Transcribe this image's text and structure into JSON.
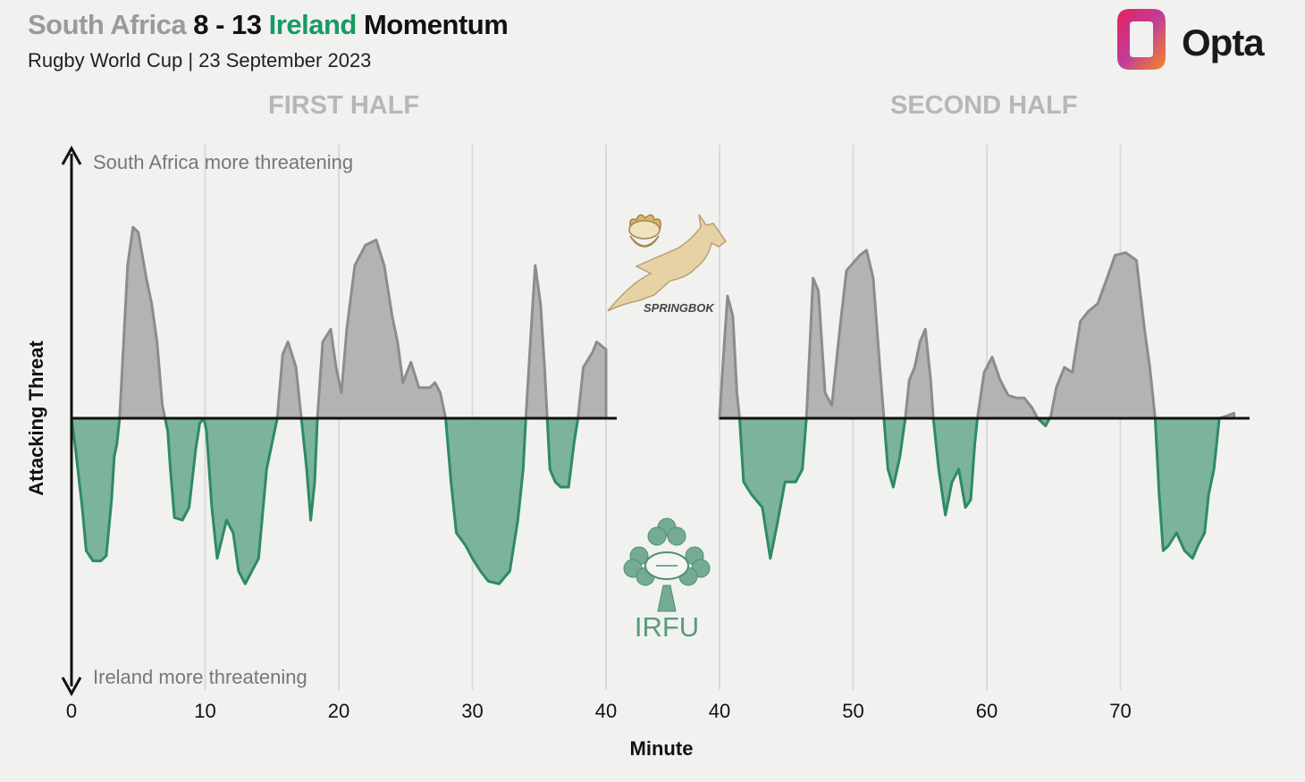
{
  "header": {
    "title_home": "South Africa",
    "title_score": "8 - 13",
    "title_away": "Ireland",
    "title_suffix": "Momentum",
    "subtitle": "Rugby World Cup | 23 September 2023",
    "first_half": "FIRST HALF",
    "second_half": "SECOND HALF"
  },
  "logo": {
    "text": "Opta",
    "icon": "opta-logo-icon"
  },
  "badges": {
    "home_text": "SPRINGBOK",
    "away_text": "IRFU"
  },
  "annotations": {
    "top": "South Africa more threatening",
    "bottom": "Ireland more threatening"
  },
  "colors": {
    "home": "#b3b3b3",
    "home_line": "#8c8c8c",
    "away": "#7bb39b",
    "away_line": "#2e8a64",
    "background": "#f1f1f0"
  },
  "chart_data": {
    "type": "area",
    "xlabel": "Minute",
    "ylabel": "Attacking Threat",
    "ylim": [
      -1,
      1
    ],
    "grid": "vertical",
    "halves": [
      {
        "name": "FIRST HALF",
        "xlim": [
          0,
          40
        ],
        "xticks": [
          0,
          10,
          20,
          30,
          40
        ]
      },
      {
        "name": "SECOND HALF",
        "xlim": [
          40,
          80
        ],
        "xticks": [
          40,
          50,
          60,
          70
        ]
      }
    ],
    "series": [
      {
        "name": "first_half",
        "points": [
          [
            0,
            0
          ],
          [
            0.3,
            -0.12
          ],
          [
            0.8,
            -0.35
          ],
          [
            1.1,
            -0.52
          ],
          [
            1.6,
            -0.56
          ],
          [
            2.2,
            -0.56
          ],
          [
            2.6,
            -0.54
          ],
          [
            3.0,
            -0.32
          ],
          [
            3.2,
            -0.15
          ],
          [
            3.4,
            -0.1
          ],
          [
            3.6,
            0
          ],
          [
            3.8,
            0.2
          ],
          [
            4.2,
            0.6
          ],
          [
            4.6,
            0.75
          ],
          [
            5.0,
            0.73
          ],
          [
            5.6,
            0.55
          ],
          [
            6.0,
            0.45
          ],
          [
            6.4,
            0.3
          ],
          [
            6.8,
            0.05
          ],
          [
            7.0,
            0
          ],
          [
            7.2,
            -0.05
          ],
          [
            7.4,
            -0.2
          ],
          [
            7.7,
            -0.39
          ],
          [
            8.3,
            -0.4
          ],
          [
            8.8,
            -0.35
          ],
          [
            9.3,
            -0.12
          ],
          [
            9.6,
            -0.02
          ],
          [
            9.9,
            0
          ],
          [
            10.1,
            -0.05
          ],
          [
            10.5,
            -0.35
          ],
          [
            10.9,
            -0.55
          ],
          [
            11.6,
            -0.4
          ],
          [
            12.1,
            -0.45
          ],
          [
            12.5,
            -0.6
          ],
          [
            13.0,
            -0.65
          ],
          [
            13.5,
            -0.6
          ],
          [
            14.0,
            -0.55
          ],
          [
            14.6,
            -0.2
          ],
          [
            15.0,
            -0.1
          ],
          [
            15.4,
            0
          ],
          [
            15.8,
            0.25
          ],
          [
            16.2,
            0.3
          ],
          [
            16.8,
            0.2
          ],
          [
            17.2,
            0
          ],
          [
            17.6,
            -0.2
          ],
          [
            17.9,
            -0.4
          ],
          [
            18.2,
            -0.25
          ],
          [
            18.4,
            0
          ],
          [
            18.8,
            0.3
          ],
          [
            19.4,
            0.35
          ],
          [
            19.8,
            0.2
          ],
          [
            20.2,
            0.1
          ],
          [
            20.6,
            0.35
          ],
          [
            21.2,
            0.6
          ],
          [
            22.0,
            0.68
          ],
          [
            22.8,
            0.7
          ],
          [
            23.4,
            0.6
          ],
          [
            24.0,
            0.4
          ],
          [
            24.4,
            0.3
          ],
          [
            24.8,
            0.14
          ],
          [
            25.4,
            0.22
          ],
          [
            26.0,
            0.12
          ],
          [
            26.8,
            0.12
          ],
          [
            27.2,
            0.14
          ],
          [
            27.6,
            0.1
          ],
          [
            28.0,
            0
          ],
          [
            28.4,
            -0.25
          ],
          [
            28.8,
            -0.45
          ],
          [
            29.5,
            -0.5
          ],
          [
            30.0,
            -0.55
          ],
          [
            30.6,
            -0.6
          ],
          [
            31.2,
            -0.64
          ],
          [
            32.0,
            -0.65
          ],
          [
            32.8,
            -0.6
          ],
          [
            33.4,
            -0.4
          ],
          [
            33.8,
            -0.2
          ],
          [
            34.0,
            0
          ],
          [
            34.4,
            0.35
          ],
          [
            34.7,
            0.6
          ],
          [
            35.1,
            0.45
          ],
          [
            35.4,
            0.2
          ],
          [
            35.6,
            0
          ],
          [
            35.8,
            -0.2
          ],
          [
            36.2,
            -0.25
          ],
          [
            36.6,
            -0.27
          ],
          [
            37.2,
            -0.27
          ],
          [
            37.6,
            -0.1
          ],
          [
            37.9,
            0
          ],
          [
            38.3,
            0.2
          ],
          [
            39.0,
            0.26
          ],
          [
            39.3,
            0.3
          ],
          [
            40.0,
            0.27
          ]
        ]
      },
      {
        "name": "second_half",
        "points": [
          [
            40,
            0
          ],
          [
            40.3,
            0.25
          ],
          [
            40.6,
            0.48
          ],
          [
            41.0,
            0.4
          ],
          [
            41.3,
            0.1
          ],
          [
            41.5,
            0
          ],
          [
            41.8,
            -0.25
          ],
          [
            42.4,
            -0.3
          ],
          [
            43.2,
            -0.35
          ],
          [
            43.8,
            -0.55
          ],
          [
            44.3,
            -0.42
          ],
          [
            44.9,
            -0.25
          ],
          [
            45.7,
            -0.25
          ],
          [
            46.2,
            -0.2
          ],
          [
            46.5,
            0
          ],
          [
            47.0,
            0.55
          ],
          [
            47.4,
            0.5
          ],
          [
            47.9,
            0.1
          ],
          [
            48.4,
            0.05
          ],
          [
            49.0,
            0.35
          ],
          [
            49.5,
            0.58
          ],
          [
            50.5,
            0.64
          ],
          [
            51.0,
            0.66
          ],
          [
            51.5,
            0.55
          ],
          [
            52.0,
            0.2
          ],
          [
            52.3,
            0
          ],
          [
            52.6,
            -0.2
          ],
          [
            53.0,
            -0.27
          ],
          [
            53.5,
            -0.15
          ],
          [
            53.9,
            0
          ],
          [
            54.2,
            0.15
          ],
          [
            54.6,
            0.2
          ],
          [
            55.0,
            0.3
          ],
          [
            55.4,
            0.35
          ],
          [
            55.8,
            0.15
          ],
          [
            56.0,
            0
          ],
          [
            56.4,
            -0.2
          ],
          [
            56.9,
            -0.38
          ],
          [
            57.4,
            -0.25
          ],
          [
            57.9,
            -0.2
          ],
          [
            58.4,
            -0.35
          ],
          [
            58.8,
            -0.32
          ],
          [
            59.1,
            -0.1
          ],
          [
            59.3,
            0
          ],
          [
            59.8,
            0.18
          ],
          [
            60.4,
            0.24
          ],
          [
            61.0,
            0.15
          ],
          [
            61.6,
            0.09
          ],
          [
            62.2,
            0.08
          ],
          [
            62.8,
            0.08
          ],
          [
            63.4,
            0.04
          ],
          [
            63.8,
            0
          ],
          [
            64.4,
            -0.03
          ],
          [
            64.8,
            0.01
          ],
          [
            65.2,
            0.12
          ],
          [
            65.8,
            0.2
          ],
          [
            66.4,
            0.18
          ],
          [
            67.0,
            0.38
          ],
          [
            67.6,
            0.42
          ],
          [
            68.3,
            0.45
          ],
          [
            69.0,
            0.55
          ],
          [
            69.6,
            0.64
          ],
          [
            70.4,
            0.65
          ],
          [
            71.2,
            0.62
          ],
          [
            71.8,
            0.35
          ],
          [
            72.2,
            0.2
          ],
          [
            72.6,
            0
          ],
          [
            72.9,
            -0.3
          ],
          [
            73.2,
            -0.52
          ],
          [
            73.6,
            -0.5
          ],
          [
            74.2,
            -0.45
          ],
          [
            74.8,
            -0.52
          ],
          [
            75.4,
            -0.55
          ],
          [
            75.8,
            -0.5
          ],
          [
            76.3,
            -0.45
          ],
          [
            76.6,
            -0.3
          ],
          [
            77.0,
            -0.2
          ],
          [
            77.4,
            0
          ],
          [
            78.0,
            0.01
          ],
          [
            78.5,
            0.02
          ]
        ]
      }
    ]
  }
}
